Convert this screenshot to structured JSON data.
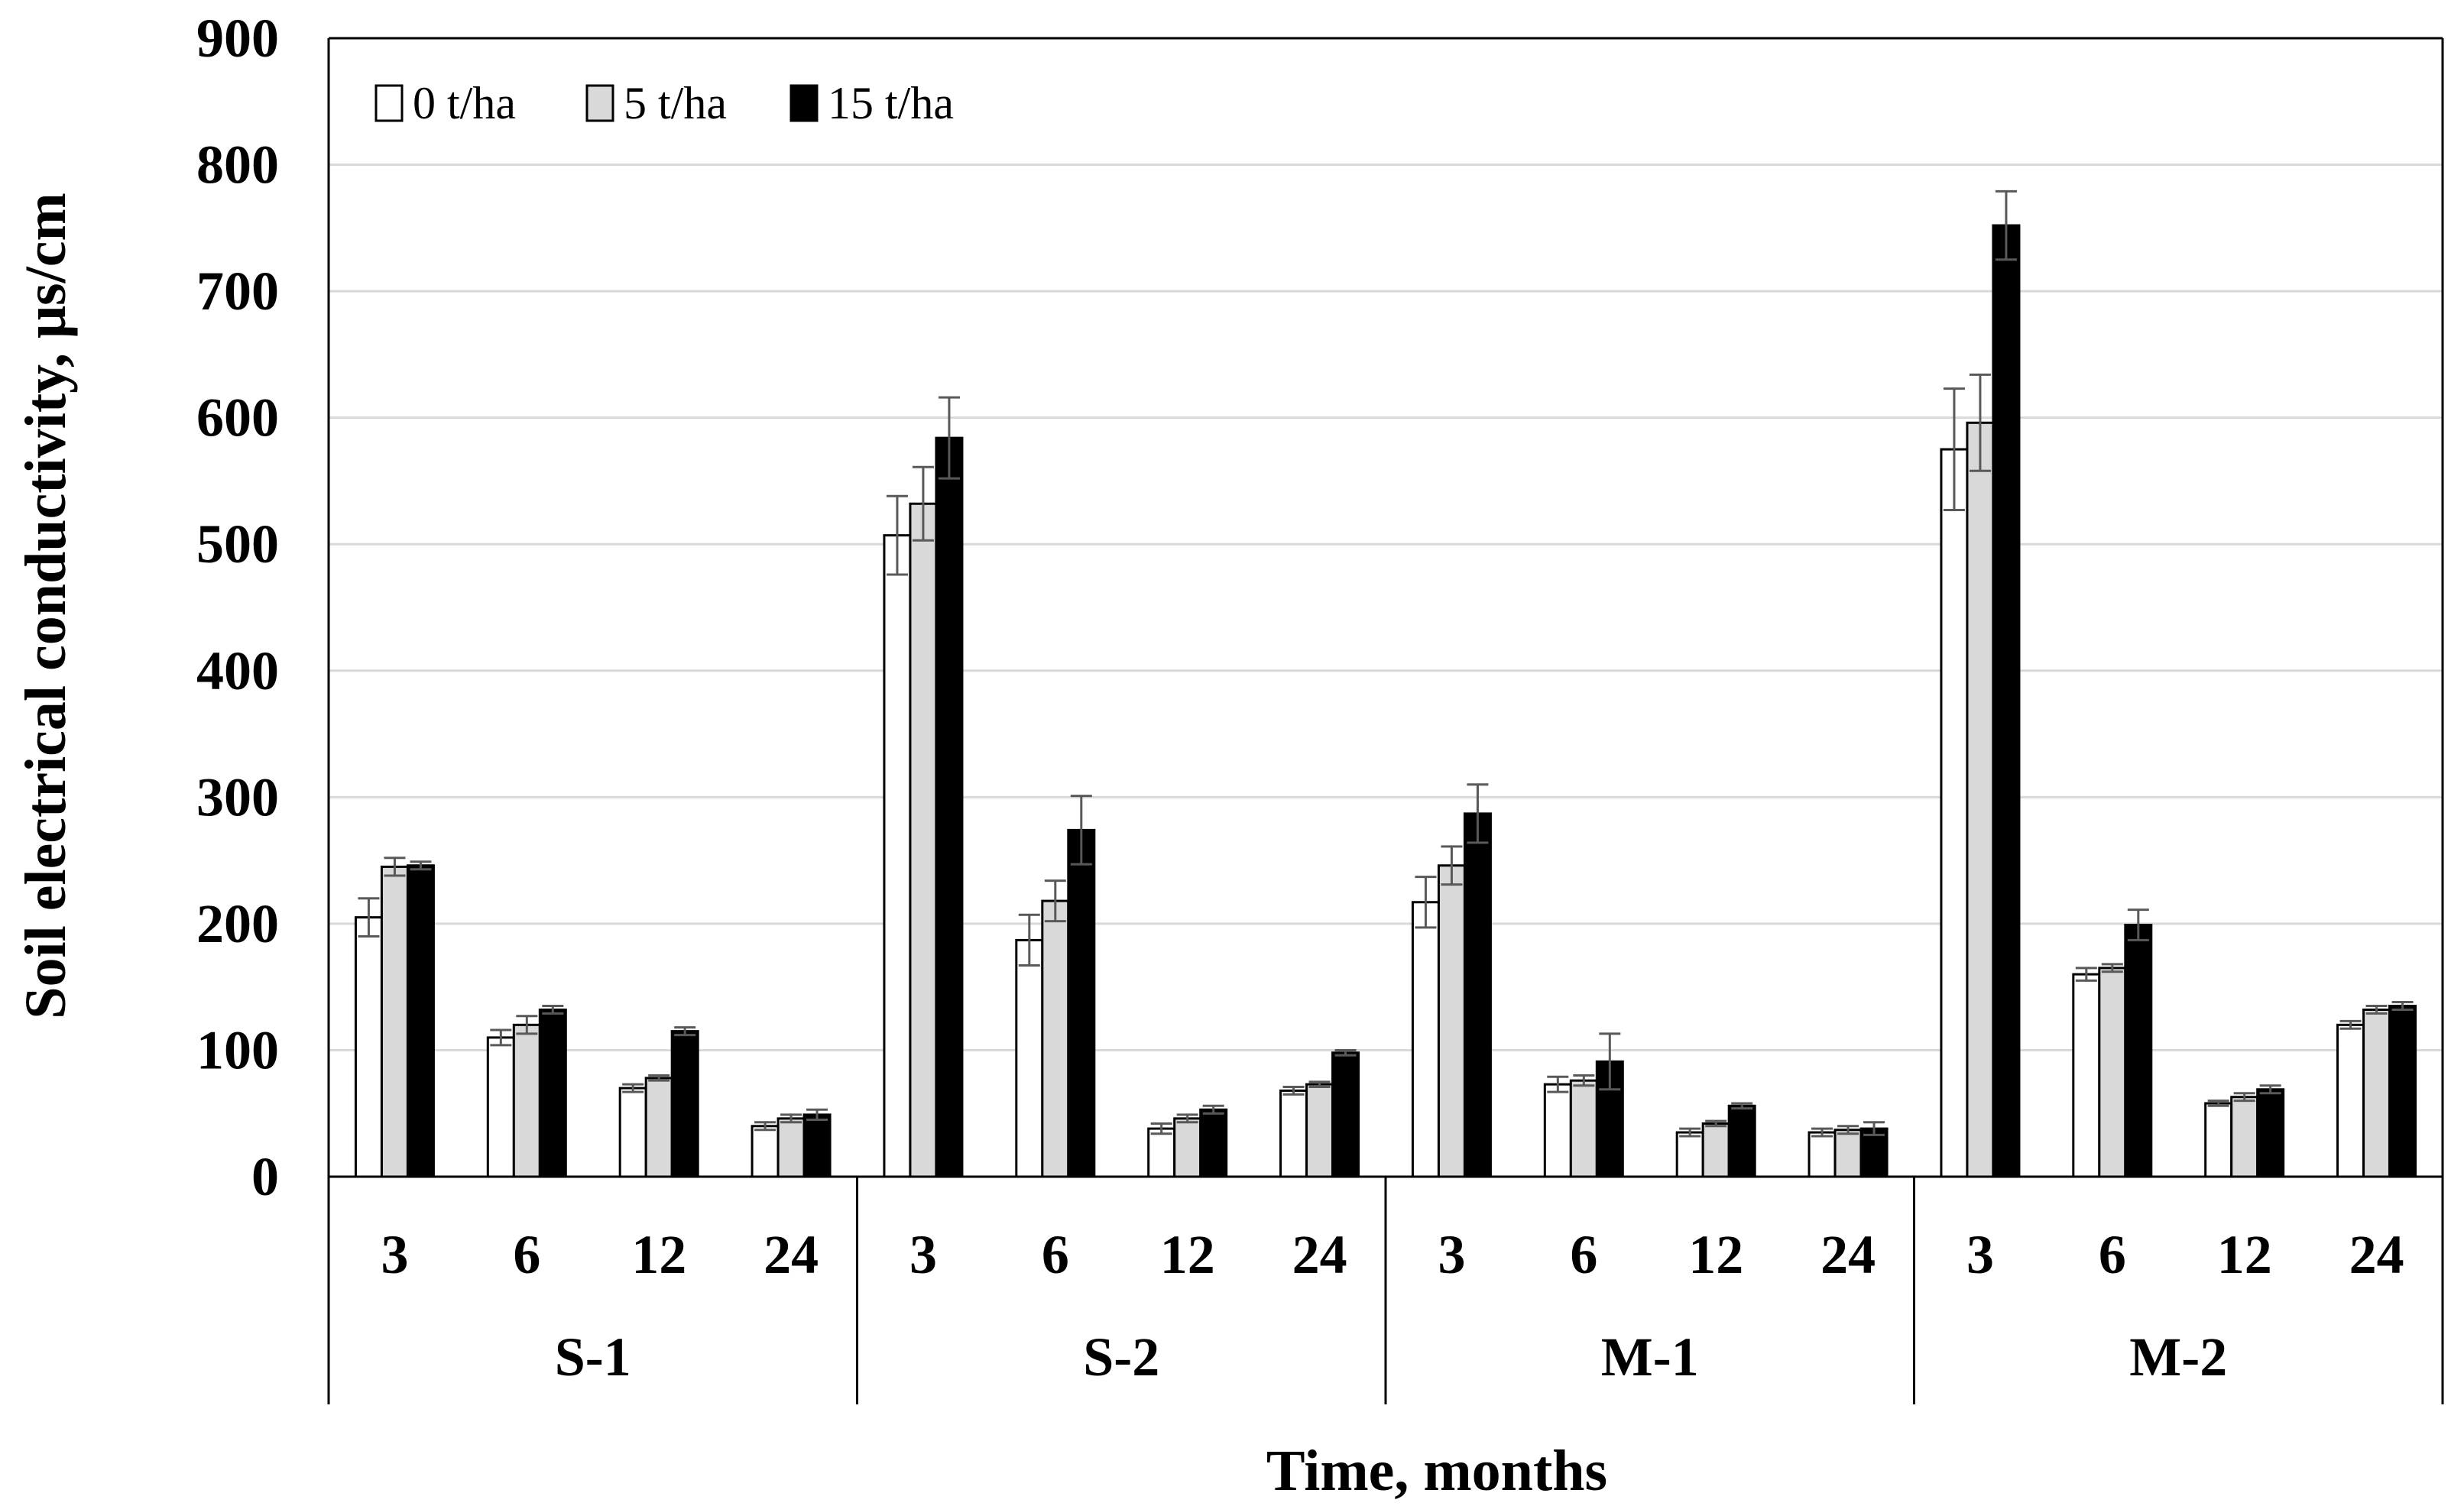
{
  "chart_data": {
    "type": "bar",
    "title": "",
    "ylabel": "Soil electrical conductivity, μs/cm",
    "xlabel": "Time, months",
    "ylim": [
      0,
      900
    ],
    "yticks": [
      "0",
      "100",
      "200",
      "300",
      "400",
      "500",
      "600",
      "700",
      "800",
      "900"
    ],
    "grid": true,
    "legend_position": "top-left",
    "groups": [
      "S-1",
      "S-2",
      "M-1",
      "M-2"
    ],
    "months": [
      "3",
      "6",
      "12",
      "24"
    ],
    "series": [
      {
        "name": "0 t/ha",
        "color": "#ffffff",
        "values": [
          205,
          110,
          70,
          40,
          507,
          187,
          38,
          68,
          217,
          73,
          35,
          35,
          575,
          160,
          58,
          120
        ],
        "errors": [
          15,
          6,
          3,
          3,
          31,
          20,
          4,
          3,
          20,
          6,
          3,
          3,
          48,
          5,
          2,
          3
        ]
      },
      {
        "name": "5 t/ha",
        "color": "#d9d9d9",
        "values": [
          245,
          120,
          78,
          46,
          532,
          218,
          46,
          73,
          246,
          76,
          42,
          37,
          596,
          165,
          63,
          132
        ],
        "errors": [
          7,
          7,
          2,
          3,
          29,
          16,
          3,
          2,
          15,
          4,
          2,
          3,
          38,
          3,
          3,
          3
        ]
      },
      {
        "name": "15 t/ha",
        "color": "#000000",
        "values": [
          246,
          132,
          115,
          49,
          584,
          274,
          53,
          98,
          287,
          91,
          56,
          38,
          752,
          199,
          69,
          135
        ],
        "errors": [
          3,
          3,
          3,
          4,
          32,
          27,
          3,
          2,
          23,
          22,
          2,
          5,
          27,
          12,
          3,
          3
        ]
      }
    ]
  }
}
